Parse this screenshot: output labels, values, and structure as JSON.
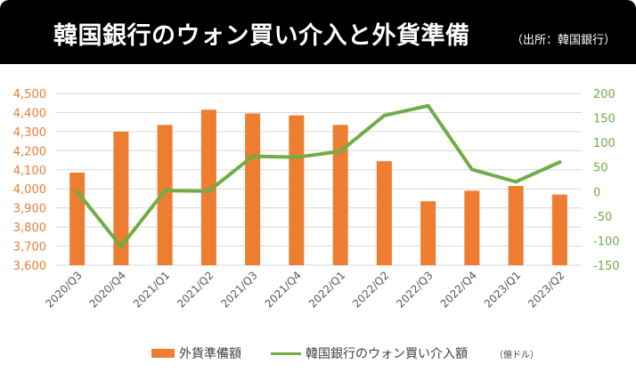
{
  "header": {
    "title": "韓国銀行のウォン買い介入と外貨準備",
    "source": "（出所：韓国銀行）"
  },
  "colors": {
    "bar": "#ED7D31",
    "line": "#70AD47",
    "left_axis_text": "#ED7D31",
    "right_axis_text": "#70AD47",
    "header_bg": "#000000"
  },
  "legend": {
    "bar_label": "外貨準備額",
    "line_label": "韓国銀行のウォン買い介入額",
    "line_unit": "（億ドル）"
  },
  "chart_data": {
    "type": "bar",
    "categories": [
      "2020/Q3",
      "2020/Q4",
      "2021/Q1",
      "2021/Q2",
      "2021/Q3",
      "2021/Q4",
      "2022/Q1",
      "2022/Q2",
      "2022/Q3",
      "2022/Q4",
      "2023/Q1",
      "2023/Q2"
    ],
    "series": [
      {
        "name": "外貨準備額",
        "type": "bar",
        "axis": "left",
        "values": [
          4085,
          4300,
          4335,
          4415,
          4395,
          4385,
          4335,
          4145,
          3935,
          3990,
          4015,
          3970
        ]
      },
      {
        "name": "韓国銀行のウォン買い介入額",
        "type": "line",
        "axis": "right",
        "values": [
          0,
          -112,
          2,
          1,
          72,
          70,
          82,
          155,
          175,
          45,
          20,
          60
        ]
      }
    ],
    "left_axis": {
      "min": 3600,
      "max": 4500,
      "step": 100,
      "ticks": [
        "3,600",
        "3,700",
        "3,800",
        "3,900",
        "4,000",
        "4,100",
        "4,200",
        "4,300",
        "4,400",
        "4,500"
      ]
    },
    "right_axis": {
      "min": -150,
      "max": 200,
      "step": 50,
      "ticks": [
        "-150",
        "-100",
        "-50",
        "0",
        "50",
        "100",
        "150",
        "200"
      ]
    },
    "grid": true,
    "legend_position": "bottom"
  }
}
